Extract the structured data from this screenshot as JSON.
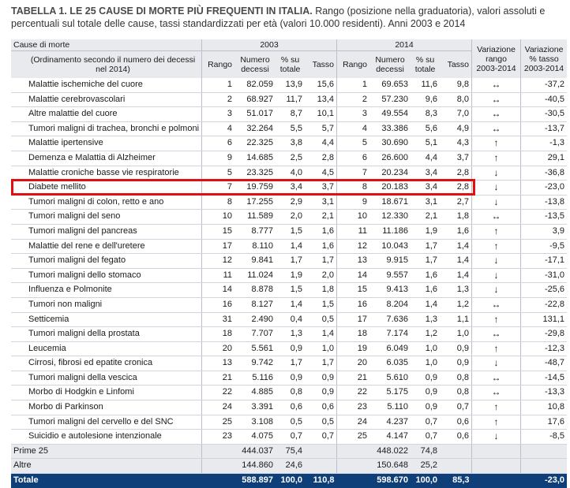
{
  "title": {
    "bold": "TABELLA 1. LE 25 CAUSE DI MORTE PIÙ FREQUENTI IN ITALIA.",
    "rest": " Rango (posizione nella graduatoria), valori assoluti e percentuali sul totale delle cause, tassi standardizzati per età (valori 10.000 residenti). Anni 2003 e 2014"
  },
  "header": {
    "cause": "Cause di morte",
    "cause_note": "(Ordinamento secondo il numero dei decessi nel 2014)",
    "year1": "2003",
    "year2": "2014",
    "rango": "Rango",
    "numero": "Numero decessi",
    "perc": "% su totale",
    "tasso": "Tasso",
    "var_rango": "Variazione rango 2003-2014",
    "var_tasso": "Variazione % tasso 2003-2014"
  },
  "rows": [
    {
      "name": "Malattie ischemiche del cuore",
      "r03": "1",
      "n03": "82.059",
      "p03": "13,9",
      "t03": "15,6",
      "r14": "1",
      "n14": "69.653",
      "p14": "11,6",
      "t14": "9,8",
      "vr": "↔",
      "vt": "-37,2"
    },
    {
      "name": "Malattie cerebrovascolari",
      "r03": "2",
      "n03": "68.927",
      "p03": "11,7",
      "t03": "13,4",
      "r14": "2",
      "n14": "57.230",
      "p14": "9,6",
      "t14": "8,0",
      "vr": "↔",
      "vt": "-40,5"
    },
    {
      "name": "Altre malattie del cuore",
      "r03": "3",
      "n03": "51.017",
      "p03": "8,7",
      "t03": "10,1",
      "r14": "3",
      "n14": "49.554",
      "p14": "8,3",
      "t14": "7,0",
      "vr": "↔",
      "vt": "-30,5"
    },
    {
      "name": "Tumori maligni di trachea, bronchi e polmoni",
      "r03": "4",
      "n03": "32.264",
      "p03": "5,5",
      "t03": "5,7",
      "r14": "4",
      "n14": "33.386",
      "p14": "5,6",
      "t14": "4,9",
      "vr": "↔",
      "vt": "-13,7"
    },
    {
      "name": "Malattie ipertensive",
      "r03": "6",
      "n03": "22.325",
      "p03": "3,8",
      "t03": "4,4",
      "r14": "5",
      "n14": "30.690",
      "p14": "5,1",
      "t14": "4,3",
      "vr": "↑",
      "vt": "-1,3"
    },
    {
      "name": "Demenza e Malattia di Alzheimer",
      "r03": "9",
      "n03": "14.685",
      "p03": "2,5",
      "t03": "2,8",
      "r14": "6",
      "n14": "26.600",
      "p14": "4,4",
      "t14": "3,7",
      "vr": "↑",
      "vt": "29,1"
    },
    {
      "name": "Malattie croniche basse vie respiratorie",
      "r03": "5",
      "n03": "23.325",
      "p03": "4,0",
      "t03": "4,5",
      "r14": "7",
      "n14": "20.234",
      "p14": "3,4",
      "t14": "2,8",
      "vr": "↓",
      "vt": "-36,8"
    },
    {
      "name": "Diabete mellito",
      "r03": "7",
      "n03": "19.759",
      "p03": "3,4",
      "t03": "3,7",
      "r14": "8",
      "n14": "20.183",
      "p14": "3,4",
      "t14": "2,8",
      "vr": "↓",
      "vt": "-23,0"
    },
    {
      "name": "Tumori maligni di colon, retto e ano",
      "r03": "8",
      "n03": "17.255",
      "p03": "2,9",
      "t03": "3,1",
      "r14": "9",
      "n14": "18.671",
      "p14": "3,1",
      "t14": "2,7",
      "vr": "↓",
      "vt": "-13,8"
    },
    {
      "name": "Tumori maligni del seno",
      "r03": "10",
      "n03": "11.589",
      "p03": "2,0",
      "t03": "2,1",
      "r14": "10",
      "n14": "12.330",
      "p14": "2,1",
      "t14": "1,8",
      "vr": "↔",
      "vt": "-13,5"
    },
    {
      "name": "Tumori maligni del pancreas",
      "r03": "15",
      "n03": "8.777",
      "p03": "1,5",
      "t03": "1,6",
      "r14": "11",
      "n14": "11.186",
      "p14": "1,9",
      "t14": "1,6",
      "vr": "↑",
      "vt": "3,9"
    },
    {
      "name": "Malattie del rene e dell'uretere",
      "r03": "17",
      "n03": "8.110",
      "p03": "1,4",
      "t03": "1,6",
      "r14": "12",
      "n14": "10.043",
      "p14": "1,7",
      "t14": "1,4",
      "vr": "↑",
      "vt": "-9,5"
    },
    {
      "name": "Tumori maligni del fegato",
      "r03": "12",
      "n03": "9.841",
      "p03": "1,7",
      "t03": "1,7",
      "r14": "13",
      "n14": "9.915",
      "p14": "1,7",
      "t14": "1,4",
      "vr": "↓",
      "vt": "-17,1"
    },
    {
      "name": "Tumori maligni dello stomaco",
      "r03": "11",
      "n03": "11.024",
      "p03": "1,9",
      "t03": "2,0",
      "r14": "14",
      "n14": "9.557",
      "p14": "1,6",
      "t14": "1,4",
      "vr": "↓",
      "vt": "-31,0"
    },
    {
      "name": "Influenza e Polmonite",
      "r03": "14",
      "n03": "8.878",
      "p03": "1,5",
      "t03": "1,8",
      "r14": "15",
      "n14": "9.413",
      "p14": "1,6",
      "t14": "1,3",
      "vr": "↓",
      "vt": "-25,6"
    },
    {
      "name": "Tumori non maligni",
      "r03": "16",
      "n03": "8.127",
      "p03": "1,4",
      "t03": "1,5",
      "r14": "16",
      "n14": "8.204",
      "p14": "1,4",
      "t14": "1,2",
      "vr": "↔",
      "vt": "-22,8"
    },
    {
      "name": "Setticemia",
      "r03": "31",
      "n03": "2.490",
      "p03": "0,4",
      "t03": "0,5",
      "r14": "17",
      "n14": "7.636",
      "p14": "1,3",
      "t14": "1,1",
      "vr": "↑",
      "vt": "131,1"
    },
    {
      "name": "Tumori maligni della prostata",
      "r03": "18",
      "n03": "7.707",
      "p03": "1,3",
      "t03": "1,4",
      "r14": "18",
      "n14": "7.174",
      "p14": "1,2",
      "t14": "1,0",
      "vr": "↔",
      "vt": "-29,8"
    },
    {
      "name": "Leucemia",
      "r03": "20",
      "n03": "5.561",
      "p03": "0,9",
      "t03": "1,0",
      "r14": "19",
      "n14": "6.049",
      "p14": "1,0",
      "t14": "0,9",
      "vr": "↑",
      "vt": "-12,3"
    },
    {
      "name": "Cirrosi, fibrosi ed epatite cronica",
      "r03": "13",
      "n03": "9.742",
      "p03": "1,7",
      "t03": "1,7",
      "r14": "20",
      "n14": "6.035",
      "p14": "1,0",
      "t14": "0,9",
      "vr": "↓",
      "vt": "-48,7"
    },
    {
      "name": "Tumori maligni della vescica",
      "r03": "21",
      "n03": "5.116",
      "p03": "0,9",
      "t03": "0,9",
      "r14": "21",
      "n14": "5.610",
      "p14": "0,9",
      "t14": "0,8",
      "vr": "↔",
      "vt": "-14,5"
    },
    {
      "name": "Morbo di Hodgkin e Linfomi",
      "r03": "22",
      "n03": "4.885",
      "p03": "0,8",
      "t03": "0,9",
      "r14": "22",
      "n14": "5.175",
      "p14": "0,9",
      "t14": "0,8",
      "vr": "↔",
      "vt": "-13,3"
    },
    {
      "name": "Morbo di Parkinson",
      "r03": "24",
      "n03": "3.391",
      "p03": "0,6",
      "t03": "0,6",
      "r14": "23",
      "n14": "5.110",
      "p14": "0,9",
      "t14": "0,7",
      "vr": "↑",
      "vt": "10,8"
    },
    {
      "name": "Tumori maligni del cervello e del SNC",
      "r03": "25",
      "n03": "3.108",
      "p03": "0,5",
      "t03": "0,5",
      "r14": "24",
      "n14": "4.237",
      "p14": "0,7",
      "t14": "0,6",
      "vr": "↑",
      "vt": "17,6"
    },
    {
      "name": "Suicidio e autolesione intenzionale",
      "r03": "23",
      "n03": "4.075",
      "p03": "0,7",
      "t03": "0,7",
      "r14": "25",
      "n14": "4.147",
      "p14": "0,7",
      "t14": "0,6",
      "vr": "↓",
      "vt": "-8,5"
    },
    {
      "name": "Prime 25",
      "r03": "",
      "n03": "444.037",
      "p03": "75,4",
      "t03": "",
      "r14": "",
      "n14": "448.022",
      "p14": "74,8",
      "t14": "",
      "vr": "",
      "vt": ""
    },
    {
      "name": "Altre",
      "r03": "",
      "n03": "144.860",
      "p03": "24,6",
      "t03": "",
      "r14": "",
      "n14": "150.648",
      "p14": "25,2",
      "t14": "",
      "vr": "",
      "vt": ""
    }
  ],
  "total": {
    "name": "Totale",
    "n03": "588.897",
    "p03": "100,0",
    "t03": "110,8",
    "n14": "598.670",
    "p14": "100,0",
    "t14": "85,3",
    "vt": "-23,0"
  },
  "highlight": {
    "row_name": "Diabete mellito",
    "color": "#e01010"
  },
  "colors": {
    "header_bg": "#e8eaee",
    "total_bg": "#0f3f78"
  }
}
